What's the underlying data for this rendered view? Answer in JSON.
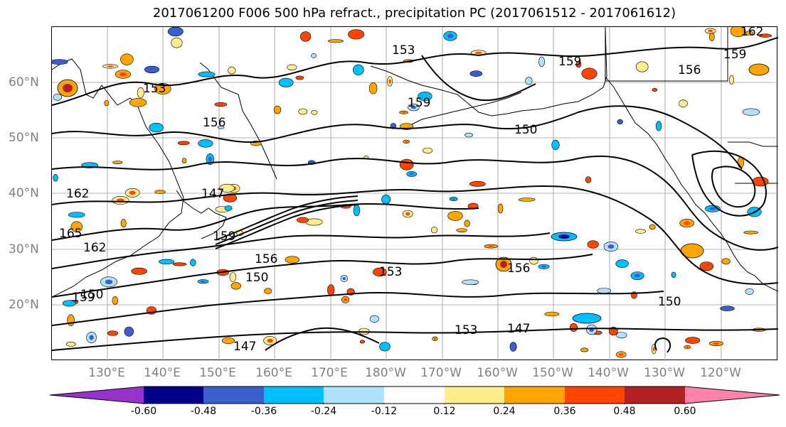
{
  "title": "2017061200 F006 500 hPa refract., precipitation PC (2017061512 - 2017061612)",
  "lat_labels": [
    "60°N",
    "50°N",
    "40°N",
    "30°N",
    "20°N"
  ],
  "lon_labels": [
    "130°E",
    "140°E",
    "150°E",
    "160°E",
    "170°E",
    "180°W",
    "170°W",
    "160°W",
    "150°W",
    "140°W",
    "130°W",
    "120°W"
  ],
  "contour_labels": [
    "162",
    "159",
    "156",
    "159",
    "153",
    "150",
    "147",
    "165",
    "162",
    "159",
    "156",
    "153",
    "150",
    "147",
    "159",
    "156",
    "153",
    "150",
    "147",
    "150",
    "159",
    "156",
    "153",
    "162"
  ],
  "colorbar": {
    "tick_labels": [
      "-0.60",
      "-0.48",
      "-0.36",
      "-0.24",
      "-0.12",
      "0.12",
      "0.24",
      "0.36",
      "0.48",
      "0.60"
    ],
    "colors": [
      "#9932cc",
      "#00008b",
      "#3a5fcd",
      "#00bfff",
      "#b0e2ff",
      "#ffffff",
      "#ffec8b",
      "#ffa500",
      "#ff4500",
      "#b22222",
      "#ff82ab"
    ]
  },
  "colors": {
    "contour": "#000000",
    "coastline": "#000000",
    "gridline": "#9a9a9a",
    "axis_text": "#808080"
  }
}
